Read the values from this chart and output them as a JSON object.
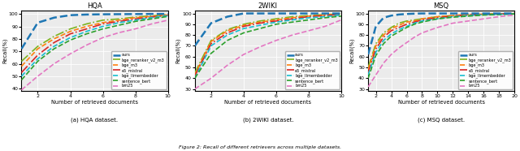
{
  "subplots": [
    {
      "title": "HQA",
      "xlabel": "Number of retrieved documents",
      "ylabel": "Recall(%)",
      "xlim": [
        1,
        10
      ],
      "xticks": [
        2,
        4,
        6,
        8,
        10
      ],
      "ylim": [
        38,
        103
      ],
      "yticks": [
        40,
        50,
        60,
        70,
        80,
        90,
        100
      ],
      "caption": "(a) HQA dataset.",
      "series": {
        "ours": {
          "x": [
            1,
            2,
            3,
            4,
            5,
            6,
            7,
            8,
            9,
            10
          ],
          "y": [
            72,
            93,
            97,
            99,
            99.5,
            99.7,
            99.8,
            99.9,
            100,
            100
          ],
          "color": "#1f77b4",
          "lw": 1.8,
          "ls": "--"
        },
        "bge_reranker_v2_m3": {
          "x": [
            1,
            2,
            3,
            4,
            5,
            6,
            7,
            8,
            9,
            10
          ],
          "y": [
            62,
            74,
            82,
            88,
            92,
            95,
            96,
            97.5,
            98.5,
            99.5
          ],
          "color": "#7db320",
          "lw": 1.2,
          "ls": "-."
        },
        "bge_m3": {
          "x": [
            1,
            2,
            3,
            4,
            5,
            6,
            7,
            8,
            9,
            10
          ],
          "y": [
            58,
            72,
            80,
            86,
            90,
            93,
            95,
            97,
            98,
            99.2
          ],
          "color": "#ff7f0e",
          "lw": 1.2,
          "ls": "--"
        },
        "e5_mistral": {
          "x": [
            1,
            2,
            3,
            4,
            5,
            6,
            7,
            8,
            9,
            10
          ],
          "y": [
            53,
            67,
            77,
            84,
            88,
            92,
            94,
            96,
            97.5,
            98.8
          ],
          "color": "#d62728",
          "lw": 1.2,
          "ls": "-."
        },
        "bge_llmembedder": {
          "x": [
            1,
            2,
            3,
            4,
            5,
            6,
            7,
            8,
            9,
            10
          ],
          "y": [
            50,
            64,
            74,
            81,
            86,
            90,
            93,
            95,
            97,
            98.5
          ],
          "color": "#17becf",
          "lw": 1.2,
          "ls": "--"
        },
        "sentence_bert": {
          "x": [
            1,
            2,
            3,
            4,
            5,
            6,
            7,
            8,
            9,
            10
          ],
          "y": [
            47,
            62,
            72,
            79,
            84,
            88,
            91,
            94,
            96,
            98
          ],
          "color": "#2ca02c",
          "lw": 1.2,
          "ls": "--"
        },
        "bm25": {
          "x": [
            1,
            2,
            3,
            4,
            5,
            6,
            7,
            8,
            9,
            10
          ],
          "y": [
            39,
            50,
            60,
            68,
            75,
            81,
            85,
            88,
            92,
            95
          ],
          "color": "#e377c2",
          "lw": 1.2,
          "ls": "--"
        }
      }
    },
    {
      "title": "2WIKI",
      "xlabel": "Number of retrieved documents",
      "ylabel": "Recall(%)",
      "xlim": [
        1,
        10
      ],
      "xticks": [
        2,
        4,
        6,
        8,
        10
      ],
      "ylim": [
        28,
        103
      ],
      "yticks": [
        30,
        40,
        50,
        60,
        70,
        80,
        90,
        100
      ],
      "caption": "(b) 2WIKI dataset.",
      "series": {
        "ours": {
          "x": [
            1,
            2,
            3,
            4,
            5,
            6,
            7,
            8,
            9,
            10
          ],
          "y": [
            70,
            91,
            97,
            100,
            100,
            100,
            100,
            100,
            100,
            100
          ],
          "color": "#1f77b4",
          "lw": 1.8,
          "ls": "--"
        },
        "bge_reranker_v2_m3": {
          "x": [
            1,
            2,
            3,
            4,
            5,
            6,
            7,
            8,
            9,
            10
          ],
          "y": [
            45,
            75,
            85,
            90,
            93,
            95,
            97,
            98,
            99,
            99.5
          ],
          "color": "#7db320",
          "lw": 1.2,
          "ls": "-."
        },
        "bge_m3": {
          "x": [
            1,
            2,
            3,
            4,
            5,
            6,
            7,
            8,
            9,
            10
          ],
          "y": [
            43,
            74,
            84,
            89,
            92,
            94,
            96,
            97.5,
            98.5,
            99.5
          ],
          "color": "#ff7f0e",
          "lw": 1.2,
          "ls": "--"
        },
        "e5_mistral": {
          "x": [
            1,
            2,
            3,
            4,
            5,
            6,
            7,
            8,
            9,
            10
          ],
          "y": [
            42,
            72,
            82,
            88,
            91,
            93,
            95,
            97,
            98,
            99
          ],
          "color": "#d62728",
          "lw": 1.2,
          "ls": "-."
        },
        "bge_llmembedder": {
          "x": [
            1,
            2,
            3,
            4,
            5,
            6,
            7,
            8,
            9,
            10
          ],
          "y": [
            40,
            70,
            80,
            86,
            89,
            92,
            94,
            96,
            97,
            98.5
          ],
          "color": "#17becf",
          "lw": 1.2,
          "ls": "--"
        },
        "sentence_bert": {
          "x": [
            1,
            2,
            3,
            4,
            5,
            6,
            7,
            8,
            9,
            10
          ],
          "y": [
            40,
            63,
            75,
            82,
            86,
            90,
            92,
            94,
            96,
            97.5
          ],
          "color": "#2ca02c",
          "lw": 1.2,
          "ls": "--"
        },
        "bm25": {
          "x": [
            1,
            2,
            3,
            4,
            5,
            6,
            7,
            8,
            9,
            10
          ],
          "y": [
            30,
            40,
            52,
            62,
            69,
            75,
            80,
            84,
            88,
            94
          ],
          "color": "#e377c2",
          "lw": 1.2,
          "ls": "--"
        }
      }
    },
    {
      "title": "MSQ",
      "xlabel": "Number of retrieved documents",
      "ylabel": "Recall(%)",
      "xlim": [
        1,
        20
      ],
      "xticks": [
        2,
        4,
        6,
        8,
        10,
        12,
        14,
        16,
        18,
        20
      ],
      "ylim": [
        28,
        103
      ],
      "yticks": [
        30,
        40,
        50,
        60,
        70,
        80,
        90,
        100
      ],
      "caption": "(c) MSQ dataset.",
      "series": {
        "ours": {
          "x": [
            1,
            2,
            3,
            4,
            5,
            6,
            7,
            8,
            10,
            12,
            14,
            16,
            18,
            20
          ],
          "y": [
            62,
            88,
            96,
            98,
            99,
            99.5,
            99.8,
            100,
            100,
            100,
            100,
            100,
            100,
            100
          ],
          "color": "#1f77b4",
          "lw": 1.8,
          "ls": "--"
        },
        "bge_reranker_v2_m3": {
          "x": [
            1,
            2,
            3,
            4,
            5,
            6,
            7,
            8,
            10,
            12,
            14,
            16,
            18,
            20
          ],
          "y": [
            50,
            72,
            82,
            87,
            91,
            93,
            94,
            95,
            97,
            98,
            99,
            99.5,
            99.7,
            100
          ],
          "color": "#7db320",
          "lw": 1.2,
          "ls": "-."
        },
        "bge_m3": {
          "x": [
            1,
            2,
            3,
            4,
            5,
            6,
            7,
            8,
            10,
            12,
            14,
            16,
            18,
            20
          ],
          "y": [
            48,
            70,
            80,
            86,
            89,
            92,
            93,
            95,
            97,
            98,
            99,
            99.3,
            99.6,
            100
          ],
          "color": "#ff7f0e",
          "lw": 1.2,
          "ls": "--"
        },
        "e5_mistral": {
          "x": [
            1,
            2,
            3,
            4,
            5,
            6,
            7,
            8,
            10,
            12,
            14,
            16,
            18,
            20
          ],
          "y": [
            45,
            67,
            78,
            84,
            87,
            90,
            92,
            94,
            96,
            97.5,
            98.5,
            99,
            99.4,
            99.8
          ],
          "color": "#d62728",
          "lw": 1.2,
          "ls": "-."
        },
        "bge_llmembedder": {
          "x": [
            1,
            2,
            3,
            4,
            5,
            6,
            7,
            8,
            10,
            12,
            14,
            16,
            18,
            20
          ],
          "y": [
            43,
            64,
            75,
            81,
            85,
            88,
            91,
            93,
            95,
            97,
            98,
            98.8,
            99.2,
            99.7
          ],
          "color": "#17becf",
          "lw": 1.2,
          "ls": "--"
        },
        "sentence_bert": {
          "x": [
            1,
            2,
            3,
            4,
            5,
            6,
            7,
            8,
            10,
            12,
            14,
            16,
            18,
            20
          ],
          "y": [
            40,
            61,
            72,
            79,
            83,
            87,
            90,
            92,
            95,
            96.5,
            97.5,
            98.5,
            99,
            99.5
          ],
          "color": "#2ca02c",
          "lw": 1.2,
          "ls": "--"
        },
        "bm25": {
          "x": [
            1,
            2,
            3,
            4,
            5,
            6,
            7,
            8,
            10,
            12,
            14,
            16,
            18,
            20
          ],
          "y": [
            32,
            43,
            54,
            62,
            68,
            73,
            78,
            82,
            87,
            91,
            93,
            95,
            97,
            98.5
          ],
          "color": "#e377c2",
          "lw": 1.2,
          "ls": "--"
        }
      }
    }
  ],
  "legend_labels": [
    "ours",
    "bge_reranker_v2_m3",
    "bge_m3",
    "e5_mistral",
    "bge_llmembedder",
    "sentence_bert",
    "bm25"
  ],
  "figure_caption": "Figure 2: Recall of different retrievers across multiple datasets.",
  "bg_color": "#ebebeb"
}
